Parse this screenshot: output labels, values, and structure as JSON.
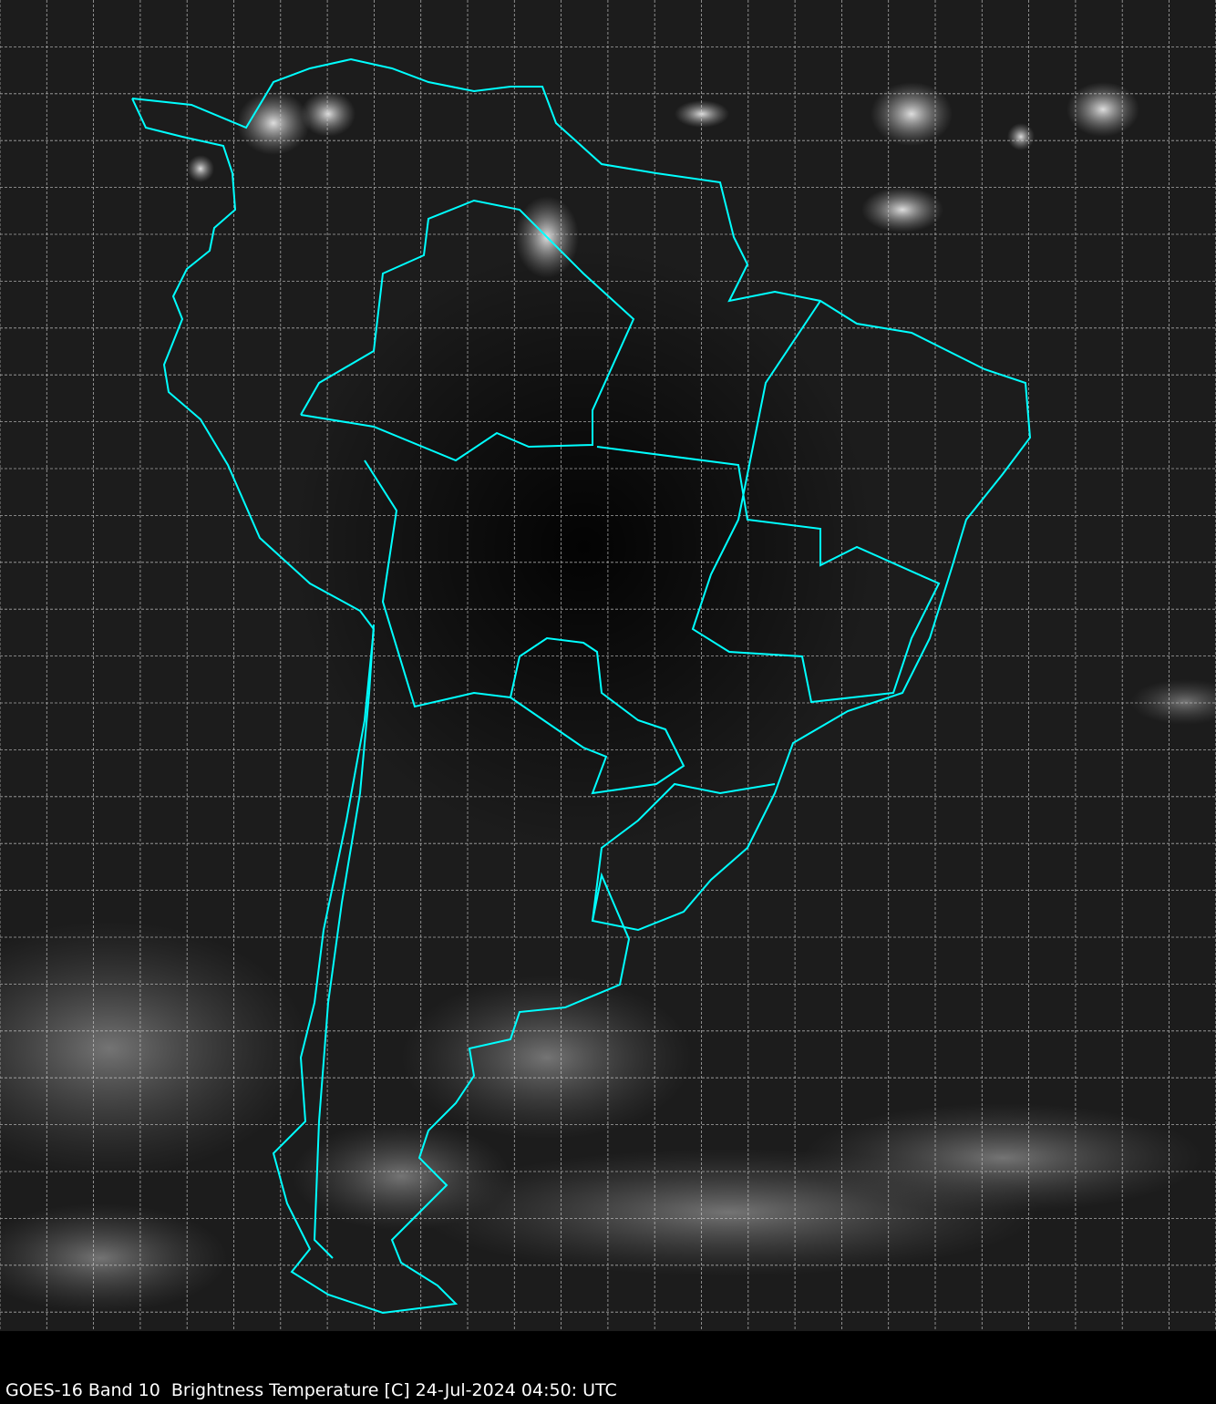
{
  "caption": "GOES-16 Band 10  Brightness Temperature [C] 24-Jul-2024 04:50: UTC",
  "colors": {
    "background": "#000000",
    "borders": "#00ffff",
    "grid": "#cccccc",
    "caption_text": "#ffffff"
  }
}
